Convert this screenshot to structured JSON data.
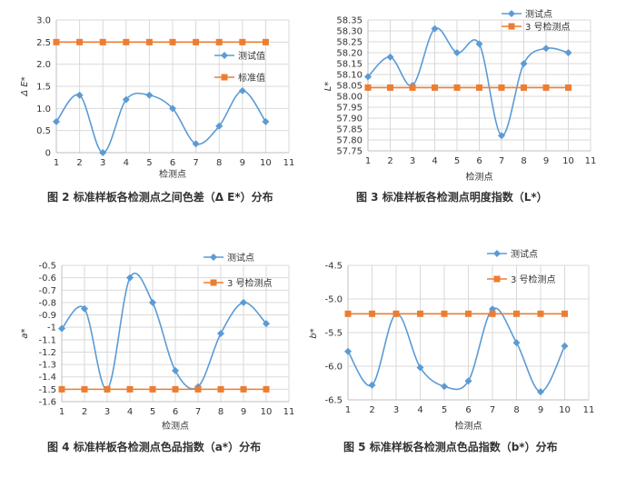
{
  "charts": [
    {
      "caption": "图 2   标准样板各检测点之间色差（Δ E*）分布",
      "chart_data": {
        "type": "line",
        "x": [
          1,
          2,
          3,
          4,
          5,
          6,
          7,
          8,
          9,
          10
        ],
        "xlabel": "检测点",
        "ylabel": "Δ E*",
        "xlim": [
          1,
          11
        ],
        "ylim": [
          0,
          3
        ],
        "xticks": [
          "1",
          "2",
          "3",
          "4",
          "5",
          "6",
          "7",
          "8",
          "9",
          "10",
          "11"
        ],
        "yticks": [
          "0",
          "0.5",
          "1.0",
          "1.5",
          "2.0",
          "2.5",
          "3.0"
        ],
        "grid": true,
        "legend": "right",
        "series": [
          {
            "name": "测试值",
            "color": "#5b9bd5",
            "marker": "diamond",
            "smooth": true,
            "values": [
              0.7,
              1.3,
              0.0,
              1.2,
              1.3,
              1.0,
              0.2,
              0.6,
              1.4,
              0.7
            ]
          },
          {
            "name": "标准值",
            "color": "#ed7d31",
            "marker": "square",
            "smooth": false,
            "values": [
              2.5,
              2.5,
              2.5,
              2.5,
              2.5,
              2.5,
              2.5,
              2.5,
              2.5,
              2.5
            ]
          }
        ]
      }
    },
    {
      "caption": "图 3   标准样板各检测点明度指数（L*）",
      "chart_data": {
        "type": "line",
        "x": [
          1,
          2,
          3,
          4,
          5,
          6,
          7,
          8,
          9,
          10
        ],
        "xlabel": "检测点",
        "ylabel": "L*",
        "xlim": [
          1,
          11
        ],
        "ylim": [
          57.75,
          58.35
        ],
        "xticks": [
          "1",
          "2",
          "3",
          "4",
          "5",
          "6",
          "7",
          "8",
          "9",
          "10",
          "11"
        ],
        "yticks": [
          "57.75",
          "57.80",
          "57.85",
          "57.90",
          "57.95",
          "58.00",
          "58.05",
          "58.10",
          "58.15",
          "58.20",
          "58.25",
          "58.30",
          "58.35"
        ],
        "grid": true,
        "legend": "top-right",
        "series": [
          {
            "name": "测试点",
            "color": "#5b9bd5",
            "marker": "diamond",
            "smooth": true,
            "values": [
              58.09,
              58.18,
              58.05,
              58.31,
              58.2,
              58.24,
              57.82,
              58.15,
              58.22,
              58.2
            ]
          },
          {
            "name": "3 号检测点",
            "color": "#ed7d31",
            "marker": "square",
            "smooth": false,
            "values": [
              58.04,
              58.04,
              58.04,
              58.04,
              58.04,
              58.04,
              58.04,
              58.04,
              58.04,
              58.04
            ]
          }
        ]
      }
    },
    {
      "caption": "图 4   标准样板各检测点色品指数（a*）分布",
      "chart_data": {
        "type": "line",
        "x": [
          1,
          2,
          3,
          4,
          5,
          6,
          7,
          8,
          9,
          10
        ],
        "xlabel": "检测点",
        "ylabel": "a*",
        "xlim": [
          1,
          11
        ],
        "ylim": [
          -1.6,
          -0.5
        ],
        "xticks": [
          "1",
          "2",
          "3",
          "4",
          "5",
          "6",
          "7",
          "8",
          "9",
          "10",
          "11"
        ],
        "yticks": [
          "-0.5",
          "-0.6",
          "-0.7",
          "-0.8",
          "-0.9",
          "-1",
          "-1.1",
          "-1.2",
          "-1.3",
          "-1.4",
          "-1.5",
          "-1.6"
        ],
        "grid": true,
        "legend": "right",
        "series": [
          {
            "name": "测试点",
            "color": "#5b9bd5",
            "marker": "diamond",
            "smooth": true,
            "values": [
              -1.01,
              -0.85,
              -1.5,
              -0.6,
              -0.8,
              -1.35,
              -1.48,
              -1.05,
              -0.8,
              -0.97
            ]
          },
          {
            "name": "3 号检测点",
            "color": "#ed7d31",
            "marker": "square",
            "smooth": false,
            "values": [
              -1.5,
              -1.5,
              -1.5,
              -1.5,
              -1.5,
              -1.5,
              -1.5,
              -1.5,
              -1.5,
              -1.5
            ]
          }
        ]
      }
    },
    {
      "caption": "图 5   标准样板各检测点色品指数（b*）分布",
      "chart_data": {
        "type": "line",
        "x": [
          1,
          2,
          3,
          4,
          5,
          6,
          7,
          8,
          9,
          10
        ],
        "xlabel": "检测点",
        "ylabel": "b*",
        "xlim": [
          1,
          11
        ],
        "ylim": [
          -6.5,
          -4.5
        ],
        "xticks": [
          "1",
          "2",
          "3",
          "4",
          "5",
          "6",
          "7",
          "8",
          "9",
          "10",
          "11"
        ],
        "yticks": [
          "-4.5",
          "-5.0",
          "-5.5",
          "-6.0",
          "-6.5"
        ],
        "grid": true,
        "legend": "right",
        "series": [
          {
            "name": "测试点",
            "color": "#5b9bd5",
            "marker": "diamond",
            "smooth": true,
            "values": [
              -5.78,
              -6.28,
              -5.22,
              -6.02,
              -6.3,
              -6.22,
              -5.15,
              -5.65,
              -6.38,
              -5.7
            ]
          },
          {
            "name": "3 号检测点",
            "color": "#ed7d31",
            "marker": "square",
            "smooth": false,
            "values": [
              -5.22,
              -5.22,
              -5.22,
              -5.22,
              -5.22,
              -5.22,
              -5.22,
              -5.22,
              -5.22,
              -5.22
            ]
          }
        ]
      }
    }
  ]
}
